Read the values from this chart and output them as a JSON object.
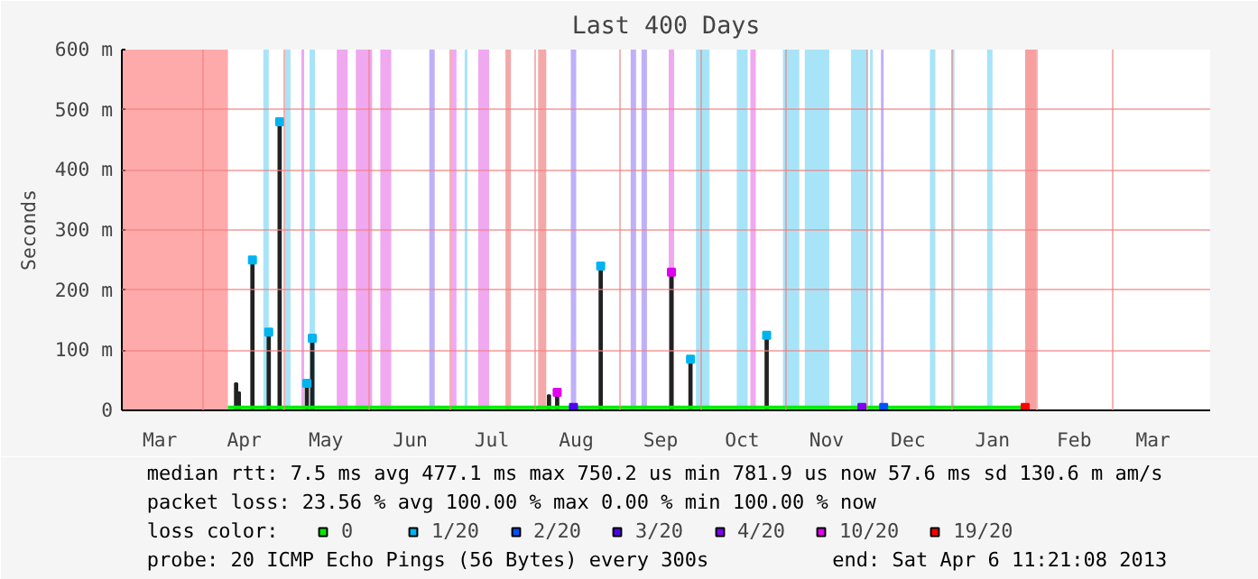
{
  "chart_data": {
    "type": "line",
    "title": "Last 400 Days",
    "ylabel": "Seconds",
    "legend_title": "loss color:",
    "legend": "bottom",
    "xlim": [
      "2012-03-02",
      "2013-04-06"
    ],
    "xticks": [
      {
        "value": "2012-03-16",
        "label": "Mar"
      },
      {
        "value": "2012-04-01",
        "label": null
      },
      {
        "value": "2012-04-16",
        "label": "Apr"
      },
      {
        "value": "2012-05-01",
        "label": null
      },
      {
        "value": "2012-05-16",
        "label": "May"
      },
      {
        "value": "2012-06-01",
        "label": null
      },
      {
        "value": "2012-06-16",
        "label": "Jun"
      },
      {
        "value": "2012-07-01",
        "label": null
      },
      {
        "value": "2012-07-16",
        "label": "Jul"
      },
      {
        "value": "2012-08-01",
        "label": null
      },
      {
        "value": "2012-08-16",
        "label": "Aug"
      },
      {
        "value": "2012-09-01",
        "label": null
      },
      {
        "value": "2012-09-16",
        "label": "Sep"
      },
      {
        "value": "2012-10-01",
        "label": null
      },
      {
        "value": "2012-10-16",
        "label": "Oct"
      },
      {
        "value": "2012-11-01",
        "label": null
      },
      {
        "value": "2012-11-16",
        "label": "Nov"
      },
      {
        "value": "2012-12-01",
        "label": null
      },
      {
        "value": "2012-12-16",
        "label": "Dec"
      },
      {
        "value": "2013-01-01",
        "label": null
      },
      {
        "value": "2013-01-16",
        "label": "Jan"
      },
      {
        "value": "2013-02-01",
        "label": null
      },
      {
        "value": "2013-02-15",
        "label": "Feb"
      },
      {
        "value": "2013-03-01",
        "label": null
      },
      {
        "value": "2013-03-16",
        "label": "Mar"
      }
    ],
    "ylim": [
      0,
      600
    ],
    "yticks": [
      0,
      {
        "value": 100,
        "label": "100 m"
      },
      {
        "value": 200,
        "label": "200 m"
      },
      {
        "value": 300,
        "label": "300 m"
      },
      {
        "value": 400,
        "label": "400 m"
      },
      {
        "value": 500,
        "label": "500 m"
      },
      {
        "value": 600,
        "label": "600 m"
      }
    ],
    "grid": true,
    "series": [
      {
        "type": "bar",
        "color": "#222222",
        "x": [
          "2012-04-13",
          "2012-04-14",
          "2012-04-19",
          "2012-04-25",
          "2012-04-29",
          "2012-05-09",
          "2012-05-11",
          "2012-08-06",
          "2012-08-09",
          "2012-08-25",
          "2012-09-20",
          "2012-09-27",
          "2012-10-25"
        ],
        "values": [
          45,
          30,
          250,
          130,
          480,
          45,
          120,
          25,
          25,
          240,
          230,
          85,
          125
        ]
      },
      {
        "name": "0",
        "color": "#00ee00",
        "x": [
          "2012-04-10",
          "2012-06-01",
          "2012-08-01",
          "2012-10-01",
          "2012-12-01",
          "2013-01-28"
        ],
        "values": [
          5,
          5,
          5,
          5,
          5,
          5
        ]
      },
      {
        "name": "1/20",
        "type": "scatter",
        "color": "#00b4f0",
        "x": [
          "2012-04-19",
          "2012-04-25",
          "2012-04-29",
          "2012-05-09",
          "2012-05-11",
          "2012-08-25",
          "2012-09-27",
          "2012-10-25"
        ],
        "values": [
          250,
          130,
          480,
          45,
          120,
          240,
          85,
          125
        ]
      },
      {
        "name": "2/20",
        "type": "scatter",
        "color": "#0050ff",
        "x": [
          "2012-12-07"
        ],
        "values": [
          5
        ]
      },
      {
        "name": "3/20",
        "type": "scatter",
        "color": "#5000f0",
        "x": [
          "2012-08-15"
        ],
        "values": [
          5
        ]
      },
      {
        "name": "4/20",
        "type": "scatter",
        "color": "#8000f0",
        "x": [
          "2012-11-29"
        ],
        "values": [
          5
        ]
      },
      {
        "name": "10/20",
        "type": "scatter",
        "color": "#e000f0",
        "x": [
          "2012-08-09",
          "2012-09-20"
        ],
        "values": [
          30,
          230
        ]
      },
      {
        "name": "19/20",
        "type": "scatter",
        "color": "#ff0000",
        "x": [
          "2013-01-28"
        ],
        "values": [
          5
        ]
      }
    ],
    "bands": [
      {
        "axis": "x",
        "from": "2012-03-02",
        "to": "2012-04-10",
        "color": "#ffaaaa"
      },
      {
        "axis": "x",
        "from": "2012-04-23",
        "to": "2012-04-25",
        "color": "#a8e4f8"
      },
      {
        "axis": "x",
        "from": "2012-05-01",
        "to": "2012-05-03",
        "color": "#a8e4f8"
      },
      {
        "axis": "x",
        "from": "2012-05-07",
        "to": "2012-05-08",
        "color": "#f0a8f0"
      },
      {
        "axis": "x",
        "from": "2012-05-10",
        "to": "2012-05-12",
        "color": "#a8e4f8"
      },
      {
        "axis": "x",
        "from": "2012-05-20",
        "to": "2012-05-24",
        "color": "#f0a8f0"
      },
      {
        "axis": "x",
        "from": "2012-05-27",
        "to": "2012-06-02",
        "color": "#f0a8f0"
      },
      {
        "axis": "x",
        "from": "2012-06-05",
        "to": "2012-06-09",
        "color": "#f0a8f0"
      },
      {
        "axis": "x",
        "from": "2012-06-23",
        "to": "2012-06-25",
        "color": "#c0b0f8"
      },
      {
        "axis": "x",
        "from": "2012-07-01",
        "to": "2012-07-03",
        "color": "#f0a8f0"
      },
      {
        "axis": "x",
        "from": "2012-07-06",
        "to": "2012-07-07",
        "color": "#a8e4f8"
      },
      {
        "axis": "x",
        "from": "2012-07-11",
        "to": "2012-07-15",
        "color": "#f0a8f0"
      },
      {
        "axis": "x",
        "from": "2012-07-21",
        "to": "2012-07-23",
        "color": "#f4a8a8"
      },
      {
        "axis": "x",
        "from": "2012-08-02",
        "to": "2012-08-05",
        "color": "#f4a8a8"
      },
      {
        "axis": "x",
        "from": "2012-08-14",
        "to": "2012-08-16",
        "color": "#c0b0f8"
      },
      {
        "axis": "x",
        "from": "2012-09-05",
        "to": "2012-09-07",
        "color": "#c0b0f8"
      },
      {
        "axis": "x",
        "from": "2012-09-09",
        "to": "2012-09-11",
        "color": "#c0b0f8"
      },
      {
        "axis": "x",
        "from": "2012-09-19",
        "to": "2012-09-21",
        "color": "#f0a8f0"
      },
      {
        "axis": "x",
        "from": "2012-09-29",
        "to": "2012-10-04",
        "color": "#a8e4f8"
      },
      {
        "axis": "x",
        "from": "2012-10-14",
        "to": "2012-10-18",
        "color": "#a8e4f8"
      },
      {
        "axis": "x",
        "from": "2012-10-19",
        "to": "2012-10-21",
        "color": "#f0a8f0"
      },
      {
        "axis": "x",
        "from": "2012-10-31",
        "to": "2012-11-06",
        "color": "#a8e4f8"
      },
      {
        "axis": "x",
        "from": "2012-11-08",
        "to": "2012-11-17",
        "color": "#a8e4f8"
      },
      {
        "axis": "x",
        "from": "2012-11-25",
        "to": "2012-12-01",
        "color": "#a8e4f8"
      },
      {
        "axis": "x",
        "from": "2012-12-02",
        "to": "2012-12-03",
        "color": "#a8e4f8"
      },
      {
        "axis": "x",
        "from": "2012-12-06",
        "to": "2012-12-07",
        "color": "#c0b0f8"
      },
      {
        "axis": "x",
        "from": "2012-12-24",
        "to": "2012-12-26",
        "color": "#a8e4f8"
      },
      {
        "axis": "x",
        "from": "2013-01-01",
        "to": "2013-01-02",
        "color": "#a8e4f8"
      },
      {
        "axis": "x",
        "from": "2013-01-14",
        "to": "2013-01-16",
        "color": "#a8e4f8"
      },
      {
        "axis": "x",
        "from": "2013-01-28",
        "to": "2013-02-01",
        "color": "#f8a0a0"
      }
    ],
    "annotations": [
      "median rtt:  7.5 ms avg  477.1 ms max  750.2 us min  781.9 us now  57.6 ms sd  130.6 m am/s",
      "packet loss: 23.56 % avg  100.00 % max  0.00 % min  100.00 % now",
      "probe:        20 ICMP Echo Pings (56 Bytes) every 300s",
      "end: Sat Apr  6 11:21:08 2013"
    ]
  }
}
